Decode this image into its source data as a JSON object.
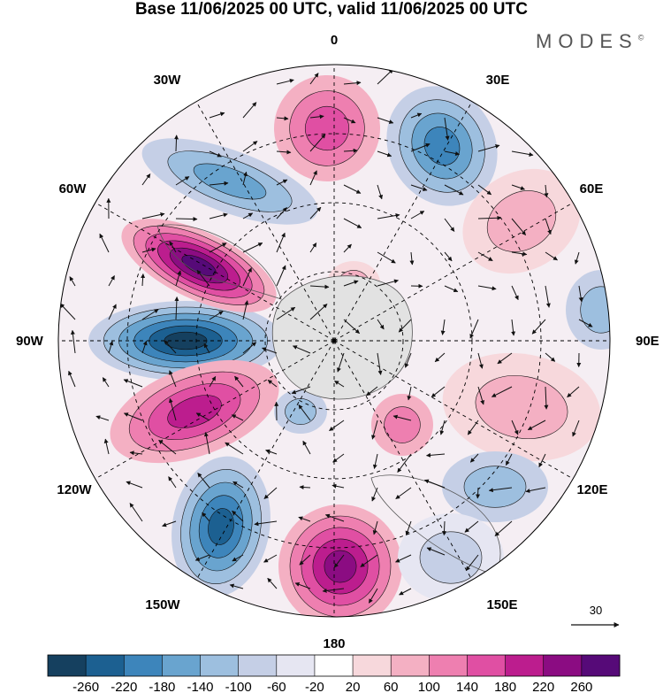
{
  "title": "Base 11/06/2025 00 UTC, valid 11/06/2025 00 UTC",
  "brand": "MODES",
  "brand_mark": "©",
  "longitude_labels": [
    "0",
    "30E",
    "60E",
    "90E",
    "120E",
    "150E",
    "180",
    "150W",
    "120W",
    "90W",
    "60W",
    "30W"
  ],
  "reference_vector": "30",
  "colorbar": {
    "ticks": [
      "-260",
      "-220",
      "-180",
      "-140",
      "-100",
      "-60",
      "-20",
      "20",
      "60",
      "100",
      "140",
      "180",
      "220",
      "260"
    ],
    "colors": [
      "#15405f",
      "#1c6091",
      "#3d85bb",
      "#69a4cf",
      "#9dbfdf",
      "#c5cfe6",
      "#e6e6f2",
      "#ffffff",
      "#f7d8dc",
      "#f4b0c3",
      "#ee7fb0",
      "#e04fa3",
      "#bc1d8e",
      "#8b0c82",
      "#560a78"
    ]
  },
  "colors": {
    "land": "#e4e4e4",
    "grid": "#000000"
  }
}
